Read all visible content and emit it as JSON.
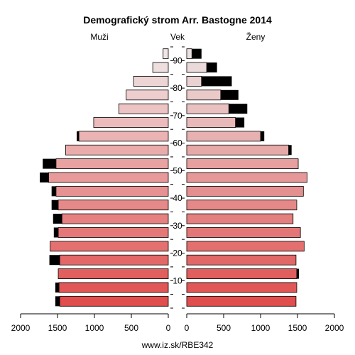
{
  "chart_data": {
    "type": "bar",
    "title": "Demografický strom Arr. Bastogne 2014",
    "left_label": "Muži",
    "center_label": "Vek",
    "right_label": "Ženy",
    "footer": "www.iz.sk/RBE342",
    "age_tick_labels": [
      "10",
      "20",
      "30",
      "40",
      "50",
      "60",
      "70",
      "80",
      "90"
    ],
    "x_tick_labels_left": [
      "2000",
      "1500",
      "1000",
      "500",
      "0"
    ],
    "x_tick_labels_right": [
      "0",
      "500",
      "1000",
      "1500",
      "2000"
    ],
    "xlim": [
      0,
      2000
    ],
    "age_groups": [
      "0-4",
      "5-9",
      "10-14",
      "15-19",
      "20-24",
      "25-29",
      "30-34",
      "35-39",
      "40-44",
      "45-49",
      "50-54",
      "55-59",
      "60-64",
      "65-69",
      "70-74",
      "75-79",
      "80-84",
      "85-89",
      "90+"
    ],
    "series": [
      {
        "name": "Muži",
        "values": [
          1530,
          1530,
          1490,
          1610,
          1600,
          1550,
          1560,
          1580,
          1580,
          1740,
          1700,
          1390,
          1240,
          1010,
          670,
          570,
          470,
          210,
          70
        ],
        "excess": [
          60,
          50,
          0,
          140,
          0,
          60,
          120,
          90,
          60,
          120,
          180,
          0,
          30,
          0,
          0,
          0,
          0,
          0,
          0
        ]
      },
      {
        "name": "Ženy",
        "values": [
          1480,
          1490,
          1520,
          1480,
          1590,
          1540,
          1440,
          1490,
          1580,
          1630,
          1510,
          1420,
          1050,
          780,
          820,
          700,
          610,
          410,
          200
        ],
        "excess": [
          0,
          0,
          30,
          0,
          0,
          0,
          0,
          0,
          0,
          0,
          0,
          40,
          50,
          120,
          250,
          240,
          410,
          140,
          130
        ]
      }
    ],
    "colors": {
      "excess": "#000000",
      "outline": "#000000"
    }
  }
}
